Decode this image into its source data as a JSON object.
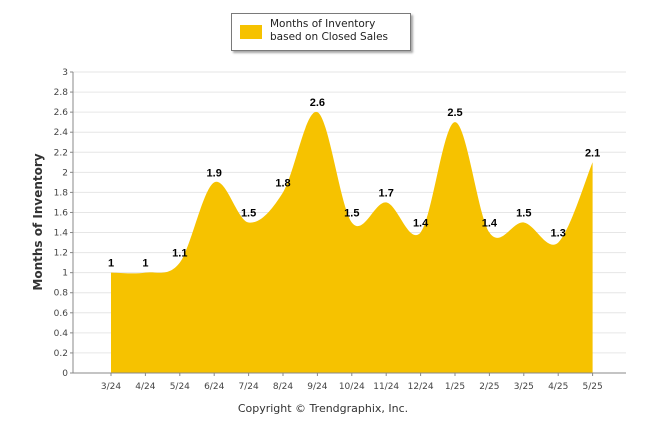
{
  "chart_data": {
    "type": "area",
    "categories": [
      "3/24",
      "4/24",
      "5/24",
      "6/24",
      "7/24",
      "8/24",
      "9/24",
      "10/24",
      "11/24",
      "12/24",
      "1/25",
      "2/25",
      "3/25",
      "4/25",
      "5/25"
    ],
    "series": [
      {
        "name": "Months of Inventory based on Closed Sales",
        "values": [
          1,
          1,
          1.1,
          1.9,
          1.5,
          1.8,
          2.6,
          1.5,
          1.7,
          1.4,
          2.5,
          1.4,
          1.5,
          1.3,
          2.1
        ],
        "color": "#F6C200"
      }
    ],
    "ylabel": "Months of Inventory",
    "ylim": [
      0,
      3
    ],
    "yticks": [
      "0",
      "0.2",
      "0.4",
      "0.6",
      "0.8",
      "1",
      "1.2",
      "1.4",
      "1.6",
      "1.8",
      "2",
      "2.2",
      "2.4",
      "2.6",
      "2.8",
      "3"
    ],
    "grid": true,
    "legend_position": "top-center"
  },
  "legend": {
    "label": "Months of Inventory based on Closed Sales"
  },
  "footer": {
    "copyright": "Copyright © Trendgraphix, Inc."
  }
}
